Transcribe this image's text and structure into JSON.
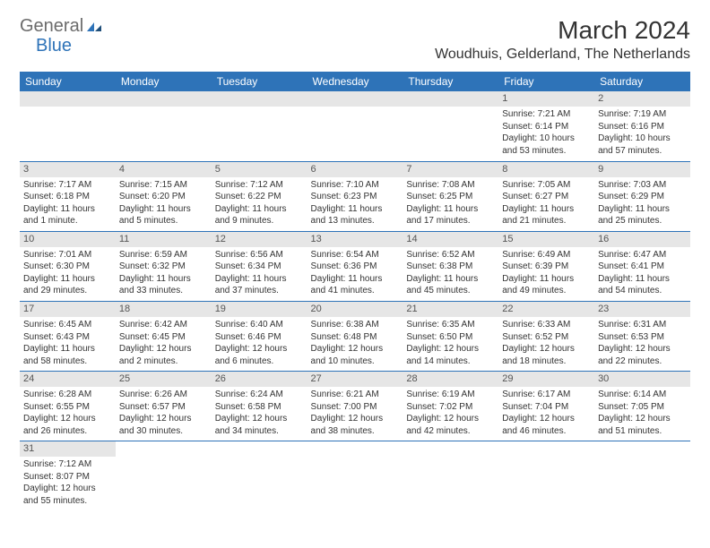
{
  "logo": {
    "part1": "General",
    "part2": "Blue"
  },
  "title": "March 2024",
  "location": "Woudhuis, Gelderland, The Netherlands",
  "colors": {
    "header_bg": "#2e73b8",
    "header_text": "#ffffff",
    "daynum_bg": "#e6e6e6",
    "row_border": "#2e73b8",
    "logo_gray": "#6b6b6b",
    "logo_blue": "#2e73b8"
  },
  "weekdays": [
    "Sunday",
    "Monday",
    "Tuesday",
    "Wednesday",
    "Thursday",
    "Friday",
    "Saturday"
  ],
  "weeks": [
    [
      null,
      null,
      null,
      null,
      null,
      {
        "d": "1",
        "sr": "7:21 AM",
        "ss": "6:14 PM",
        "dl": "10 hours and 53 minutes."
      },
      {
        "d": "2",
        "sr": "7:19 AM",
        "ss": "6:16 PM",
        "dl": "10 hours and 57 minutes."
      }
    ],
    [
      {
        "d": "3",
        "sr": "7:17 AM",
        "ss": "6:18 PM",
        "dl": "11 hours and 1 minute."
      },
      {
        "d": "4",
        "sr": "7:15 AM",
        "ss": "6:20 PM",
        "dl": "11 hours and 5 minutes."
      },
      {
        "d": "5",
        "sr": "7:12 AM",
        "ss": "6:22 PM",
        "dl": "11 hours and 9 minutes."
      },
      {
        "d": "6",
        "sr": "7:10 AM",
        "ss": "6:23 PM",
        "dl": "11 hours and 13 minutes."
      },
      {
        "d": "7",
        "sr": "7:08 AM",
        "ss": "6:25 PM",
        "dl": "11 hours and 17 minutes."
      },
      {
        "d": "8",
        "sr": "7:05 AM",
        "ss": "6:27 PM",
        "dl": "11 hours and 21 minutes."
      },
      {
        "d": "9",
        "sr": "7:03 AM",
        "ss": "6:29 PM",
        "dl": "11 hours and 25 minutes."
      }
    ],
    [
      {
        "d": "10",
        "sr": "7:01 AM",
        "ss": "6:30 PM",
        "dl": "11 hours and 29 minutes."
      },
      {
        "d": "11",
        "sr": "6:59 AM",
        "ss": "6:32 PM",
        "dl": "11 hours and 33 minutes."
      },
      {
        "d": "12",
        "sr": "6:56 AM",
        "ss": "6:34 PM",
        "dl": "11 hours and 37 minutes."
      },
      {
        "d": "13",
        "sr": "6:54 AM",
        "ss": "6:36 PM",
        "dl": "11 hours and 41 minutes."
      },
      {
        "d": "14",
        "sr": "6:52 AM",
        "ss": "6:38 PM",
        "dl": "11 hours and 45 minutes."
      },
      {
        "d": "15",
        "sr": "6:49 AM",
        "ss": "6:39 PM",
        "dl": "11 hours and 49 minutes."
      },
      {
        "d": "16",
        "sr": "6:47 AM",
        "ss": "6:41 PM",
        "dl": "11 hours and 54 minutes."
      }
    ],
    [
      {
        "d": "17",
        "sr": "6:45 AM",
        "ss": "6:43 PM",
        "dl": "11 hours and 58 minutes."
      },
      {
        "d": "18",
        "sr": "6:42 AM",
        "ss": "6:45 PM",
        "dl": "12 hours and 2 minutes."
      },
      {
        "d": "19",
        "sr": "6:40 AM",
        "ss": "6:46 PM",
        "dl": "12 hours and 6 minutes."
      },
      {
        "d": "20",
        "sr": "6:38 AM",
        "ss": "6:48 PM",
        "dl": "12 hours and 10 minutes."
      },
      {
        "d": "21",
        "sr": "6:35 AM",
        "ss": "6:50 PM",
        "dl": "12 hours and 14 minutes."
      },
      {
        "d": "22",
        "sr": "6:33 AM",
        "ss": "6:52 PM",
        "dl": "12 hours and 18 minutes."
      },
      {
        "d": "23",
        "sr": "6:31 AM",
        "ss": "6:53 PM",
        "dl": "12 hours and 22 minutes."
      }
    ],
    [
      {
        "d": "24",
        "sr": "6:28 AM",
        "ss": "6:55 PM",
        "dl": "12 hours and 26 minutes."
      },
      {
        "d": "25",
        "sr": "6:26 AM",
        "ss": "6:57 PM",
        "dl": "12 hours and 30 minutes."
      },
      {
        "d": "26",
        "sr": "6:24 AM",
        "ss": "6:58 PM",
        "dl": "12 hours and 34 minutes."
      },
      {
        "d": "27",
        "sr": "6:21 AM",
        "ss": "7:00 PM",
        "dl": "12 hours and 38 minutes."
      },
      {
        "d": "28",
        "sr": "6:19 AM",
        "ss": "7:02 PM",
        "dl": "12 hours and 42 minutes."
      },
      {
        "d": "29",
        "sr": "6:17 AM",
        "ss": "7:04 PM",
        "dl": "12 hours and 46 minutes."
      },
      {
        "d": "30",
        "sr": "6:14 AM",
        "ss": "7:05 PM",
        "dl": "12 hours and 51 minutes."
      }
    ],
    [
      {
        "d": "31",
        "sr": "7:12 AM",
        "ss": "8:07 PM",
        "dl": "12 hours and 55 minutes."
      },
      null,
      null,
      null,
      null,
      null,
      null
    ]
  ],
  "labels": {
    "sunrise": "Sunrise:",
    "sunset": "Sunset:",
    "daylight": "Daylight:"
  }
}
